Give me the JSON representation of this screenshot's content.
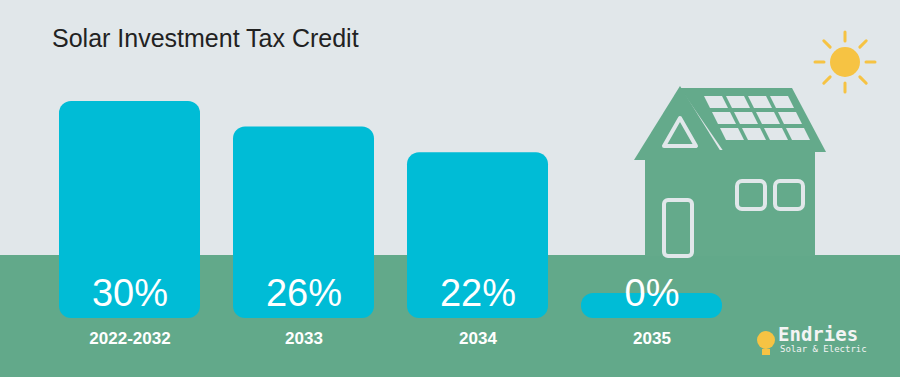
{
  "chart_data": {
    "type": "bar",
    "title": "Solar Investment Tax Credit",
    "categories": [
      "2022-2032",
      "2033",
      "2034",
      "2035"
    ],
    "values": [
      30,
      26,
      22,
      0
    ],
    "value_labels": [
      "30%",
      "26%",
      "22%",
      "0%"
    ],
    "color": "#00bcd6",
    "ylim": [
      0,
      30
    ],
    "data_labels": true,
    "tick_labels": "x",
    "grid": false,
    "annotations": [
      "Endries",
      "Solar & Electric"
    ]
  }
}
